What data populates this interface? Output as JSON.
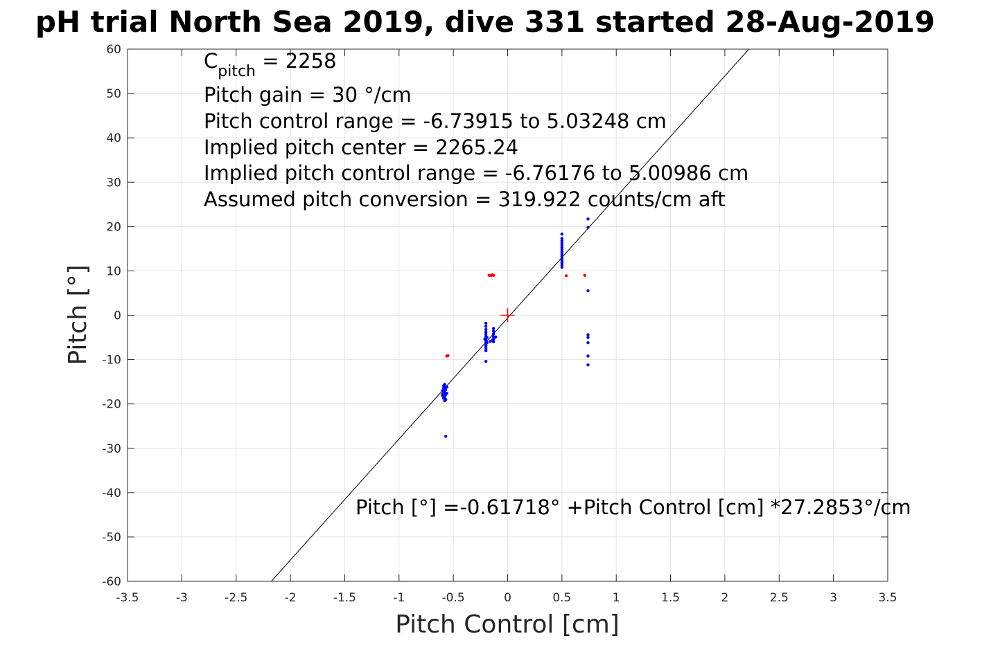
{
  "chart_data": {
    "type": "scatter",
    "title": "pH trial North Sea 2019, dive 331 started 28-Aug-2019",
    "xlabel": "Pitch Control [cm]",
    "ylabel": "Pitch [°]",
    "xlim": [
      -3.5,
      3.5
    ],
    "ylim": [
      -60,
      60
    ],
    "xticks": [
      "-3.5",
      "-3",
      "-2.5",
      "-2",
      "-1.5",
      "-1",
      "-0.5",
      "0",
      "0.5",
      "1",
      "1.5",
      "2",
      "2.5",
      "3",
      "3.5"
    ],
    "yticks": [
      "60",
      "50",
      "40",
      "30",
      "20",
      "10",
      "0",
      "-10",
      "-20",
      "-30",
      "-40",
      "-50",
      "-60"
    ],
    "grid": true,
    "colors": {
      "fit_line": "#000000",
      "included": "#0000ff",
      "excluded": "#ff0000",
      "center_marker": "#ff0000"
    },
    "fit_line": {
      "intercept": -0.61718,
      "slope": 27.2853
    },
    "center_marker": {
      "x": 0,
      "y": 0
    },
    "series": [
      {
        "color": "#0000ff",
        "points": [
          [
            -0.58,
            -15.6
          ],
          [
            -0.58,
            -16.0
          ],
          [
            -0.59,
            -16.4
          ],
          [
            -0.57,
            -16.8
          ],
          [
            -0.6,
            -17.0
          ],
          [
            -0.58,
            -17.3
          ],
          [
            -0.59,
            -17.6
          ],
          [
            -0.57,
            -17.9
          ],
          [
            -0.6,
            -18.1
          ],
          [
            -0.58,
            -18.4
          ],
          [
            -0.59,
            -18.7
          ],
          [
            -0.57,
            -19.0
          ],
          [
            -0.58,
            -19.3
          ],
          [
            -0.6,
            -17.8
          ],
          [
            -0.56,
            -16.2
          ],
          [
            -0.56,
            -17.6
          ],
          [
            -0.59,
            -15.9
          ],
          [
            -0.57,
            -27.3
          ],
          [
            -0.2,
            -1.8
          ],
          [
            -0.2,
            -2.5
          ],
          [
            -0.2,
            -3.2
          ],
          [
            -0.2,
            -3.8
          ],
          [
            -0.2,
            -4.3
          ],
          [
            -0.2,
            -4.8
          ],
          [
            -0.2,
            -5.2
          ],
          [
            -0.2,
            -5.6
          ],
          [
            -0.2,
            -6.0
          ],
          [
            -0.2,
            -6.4
          ],
          [
            -0.2,
            -6.8
          ],
          [
            -0.2,
            -7.2
          ],
          [
            -0.2,
            -7.6
          ],
          [
            -0.2,
            -8.0
          ],
          [
            -0.19,
            -5.0
          ],
          [
            -0.19,
            -6.2
          ],
          [
            -0.21,
            -5.4
          ],
          [
            -0.2,
            -10.4
          ],
          [
            -0.13,
            -3.0
          ],
          [
            -0.13,
            -3.6
          ],
          [
            -0.13,
            -4.2
          ],
          [
            -0.13,
            -4.8
          ],
          [
            -0.13,
            -5.4
          ],
          [
            -0.13,
            -6.0
          ],
          [
            -0.12,
            -5.0
          ],
          [
            -0.14,
            -5.6
          ],
          [
            -0.16,
            -5.9
          ],
          [
            -0.11,
            -4.9
          ],
          [
            0.5,
            18.3
          ],
          [
            0.5,
            17.3
          ],
          [
            0.5,
            16.8
          ],
          [
            0.5,
            16.3
          ],
          [
            0.5,
            15.8
          ],
          [
            0.5,
            15.3
          ],
          [
            0.5,
            14.8
          ],
          [
            0.5,
            14.3
          ],
          [
            0.5,
            13.8
          ],
          [
            0.5,
            13.3
          ],
          [
            0.5,
            12.8
          ],
          [
            0.5,
            12.3
          ],
          [
            0.5,
            11.8
          ],
          [
            0.5,
            11.3
          ],
          [
            0.5,
            10.8
          ],
          [
            0.74,
            21.7
          ],
          [
            0.74,
            19.8
          ],
          [
            0.74,
            5.5
          ],
          [
            0.74,
            -4.4
          ],
          [
            0.74,
            -5.0
          ],
          [
            0.74,
            -6.2
          ],
          [
            0.74,
            -9.2
          ],
          [
            0.74,
            -11.2
          ]
        ]
      },
      {
        "color": "#ff0000",
        "points": [
          [
            -0.55,
            -9.1
          ],
          [
            -0.56,
            -9.2
          ],
          [
            -0.17,
            9.0
          ],
          [
            -0.15,
            9.0
          ],
          [
            -0.13,
            9.0
          ],
          [
            -0.14,
            9.1
          ],
          [
            0.54,
            8.9
          ],
          [
            0.71,
            9.0
          ]
        ]
      }
    ],
    "annotations": {
      "c_symbol": "C",
      "c_subscript": "pitch",
      "c_value": " = 2258",
      "line2": "Pitch gain = 30 °/cm",
      "line3": "Pitch control range = -6.73915 to 5.03248 cm",
      "line4": "Implied pitch center = 2265.24",
      "line5": "Implied pitch control range = -6.76176 to 5.00986 cm",
      "line6": "Assumed pitch conversion = 319.922 counts/cm aft",
      "fit_equation": "Pitch [°] =-0.61718° +Pitch Control [cm] *27.2853°/cm"
    }
  }
}
